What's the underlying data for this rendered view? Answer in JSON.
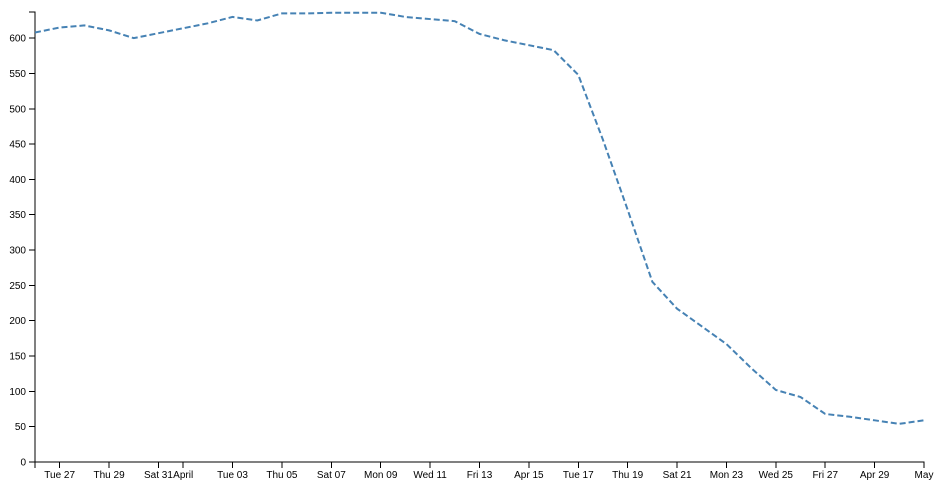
{
  "chart_data": {
    "type": "line",
    "categories": [
      null,
      "Tue 27",
      null,
      "Thu 29",
      null,
      "Sat 31",
      "April",
      null,
      "Tue 03",
      null,
      "Thu 05",
      null,
      "Sat 07",
      null,
      "Mon 09",
      null,
      "Wed 11",
      null,
      "Fri 13",
      null,
      "Apr 15",
      null,
      "Tue 17",
      null,
      "Thu 19",
      null,
      "Sat 21",
      null,
      "Mon 23",
      null,
      "Wed 25",
      null,
      "Fri 27",
      null,
      "Apr 29",
      null,
      "May"
    ],
    "series": [
      {
        "color": "#4682b4",
        "dashed": true,
        "values": [
          608,
          615,
          618,
          611,
          600,
          607,
          614,
          621,
          630,
          625,
          635,
          635,
          636,
          636,
          636,
          630,
          627,
          624,
          606,
          597,
          590,
          583,
          548,
          456,
          357,
          255,
          217,
          192,
          167,
          133,
          102,
          92,
          68,
          64,
          59,
          54,
          59
        ]
      }
    ],
    "ylim": [
      0,
      637
    ],
    "yticks": [
      0,
      50,
      100,
      150,
      200,
      250,
      300,
      350,
      400,
      450,
      500,
      550,
      600
    ]
  }
}
